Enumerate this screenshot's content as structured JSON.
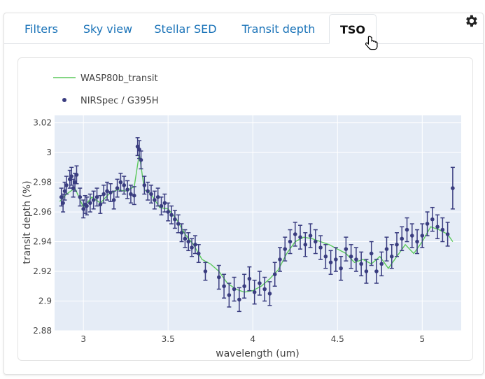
{
  "tabs": [
    {
      "label": "Filters",
      "active": false
    },
    {
      "label": "Sky view",
      "active": false
    },
    {
      "label": "Stellar SED",
      "active": false
    },
    {
      "label": "Transit depth",
      "active": false
    },
    {
      "label": "TSO",
      "active": true
    }
  ],
  "settings_icon": "gear-icon",
  "colors": {
    "model": "#5bc95b",
    "data": "#3a3d80",
    "plot_bg": "#e5ecf6",
    "tab_link": "#1a73b8"
  },
  "chart_data": {
    "type": "line",
    "xlabel": "wavelength (um)",
    "ylabel": "transit depth (%)",
    "xlim": [
      2.83,
      5.23
    ],
    "ylim": [
      2.88,
      3.025
    ],
    "xticks": [
      3,
      3.5,
      4,
      4.5,
      5
    ],
    "xtick_labels": [
      "3",
      "3.5",
      "4",
      "4.5",
      "5"
    ],
    "yticks": [
      2.88,
      2.9,
      2.92,
      2.94,
      2.96,
      2.98,
      3,
      3.02
    ],
    "ytick_labels": [
      "2.88",
      "2.9",
      "2.92",
      "2.94",
      "2.96",
      "2.98",
      "3",
      "3.02"
    ],
    "grid": true,
    "legend_position": "top-left",
    "series": [
      {
        "name": "WASP80b_transit",
        "kind": "line",
        "x": [
          2.86,
          2.9,
          2.95,
          3.0,
          3.05,
          3.1,
          3.15,
          3.2,
          3.25,
          3.3,
          3.33,
          3.36,
          3.4,
          3.45,
          3.5,
          3.55,
          3.6,
          3.65,
          3.7,
          3.75,
          3.8,
          3.85,
          3.9,
          3.95,
          4.0,
          4.05,
          4.1,
          4.15,
          4.2,
          4.25,
          4.3,
          4.35,
          4.4,
          4.45,
          4.5,
          4.55,
          4.6,
          4.65,
          4.7,
          4.75,
          4.8,
          4.85,
          4.9,
          4.95,
          5.0,
          5.05,
          5.1,
          5.15,
          5.18
        ],
        "y": [
          2.967,
          2.972,
          2.976,
          2.963,
          2.97,
          2.966,
          2.972,
          2.975,
          2.974,
          2.977,
          2.999,
          2.975,
          2.972,
          2.963,
          2.962,
          2.955,
          2.945,
          2.938,
          2.928,
          2.925,
          2.92,
          2.912,
          2.908,
          2.906,
          2.907,
          2.91,
          2.915,
          2.921,
          2.932,
          2.94,
          2.943,
          2.942,
          2.94,
          2.938,
          2.935,
          2.932,
          2.926,
          2.928,
          2.925,
          2.93,
          2.922,
          2.93,
          2.938,
          2.932,
          2.94,
          2.95,
          2.948,
          2.945,
          2.94
        ]
      },
      {
        "name": "NIRSpec / G395H",
        "kind": "errorbar",
        "x": [
          2.87,
          2.88,
          2.89,
          2.9,
          2.92,
          2.93,
          2.94,
          2.95,
          2.96,
          2.98,
          3.0,
          3.01,
          3.02,
          3.04,
          3.06,
          3.08,
          3.1,
          3.12,
          3.14,
          3.16,
          3.18,
          3.2,
          3.22,
          3.24,
          3.26,
          3.28,
          3.3,
          3.32,
          3.33,
          3.34,
          3.36,
          3.38,
          3.4,
          3.42,
          3.44,
          3.46,
          3.48,
          3.5,
          3.52,
          3.54,
          3.56,
          3.58,
          3.6,
          3.62,
          3.64,
          3.66,
          3.68,
          3.72,
          3.8,
          3.83,
          3.86,
          3.89,
          3.92,
          3.95,
          3.98,
          4.01,
          4.04,
          4.07,
          4.1,
          4.13,
          4.16,
          4.19,
          4.22,
          4.25,
          4.28,
          4.31,
          4.34,
          4.37,
          4.4,
          4.43,
          4.46,
          4.49,
          4.52,
          4.55,
          4.58,
          4.61,
          4.64,
          4.67,
          4.7,
          4.73,
          4.76,
          4.79,
          4.82,
          4.85,
          4.88,
          4.91,
          4.94,
          4.97,
          5.0,
          5.03,
          5.06,
          5.09,
          5.12,
          5.15,
          5.18
        ],
        "y": [
          2.97,
          2.966,
          2.974,
          2.978,
          2.982,
          2.984,
          2.976,
          2.98,
          2.985,
          2.97,
          2.962,
          2.965,
          2.964,
          2.966,
          2.968,
          2.97,
          2.965,
          2.972,
          2.974,
          2.973,
          2.968,
          2.976,
          2.98,
          2.978,
          2.975,
          2.972,
          2.971,
          3.004,
          3.002,
          2.995,
          2.978,
          2.974,
          2.972,
          2.968,
          2.97,
          2.964,
          2.966,
          2.96,
          2.958,
          2.955,
          2.952,
          2.946,
          2.942,
          2.94,
          2.936,
          2.938,
          2.932,
          2.92,
          2.916,
          2.91,
          2.904,
          2.908,
          2.901,
          2.91,
          2.915,
          2.906,
          2.912,
          2.908,
          2.905,
          2.918,
          2.928,
          2.935,
          2.94,
          2.945,
          2.943,
          2.938,
          2.944,
          2.94,
          2.936,
          2.93,
          2.926,
          2.928,
          2.922,
          2.935,
          2.93,
          2.928,
          2.925,
          2.92,
          2.932,
          2.92,
          2.925,
          2.935,
          2.93,
          2.938,
          2.942,
          2.948,
          2.944,
          2.94,
          2.944,
          2.952,
          2.955,
          2.95,
          2.948,
          2.945,
          2.976
        ],
        "err": [
          0.006,
          0.006,
          0.006,
          0.006,
          0.006,
          0.006,
          0.006,
          0.006,
          0.006,
          0.006,
          0.006,
          0.006,
          0.006,
          0.006,
          0.006,
          0.006,
          0.006,
          0.006,
          0.006,
          0.006,
          0.006,
          0.006,
          0.006,
          0.006,
          0.006,
          0.006,
          0.006,
          0.006,
          0.006,
          0.006,
          0.006,
          0.006,
          0.006,
          0.006,
          0.006,
          0.006,
          0.006,
          0.006,
          0.006,
          0.006,
          0.006,
          0.006,
          0.006,
          0.006,
          0.006,
          0.006,
          0.006,
          0.006,
          0.008,
          0.008,
          0.008,
          0.008,
          0.008,
          0.008,
          0.008,
          0.008,
          0.008,
          0.008,
          0.008,
          0.008,
          0.008,
          0.008,
          0.008,
          0.008,
          0.008,
          0.008,
          0.008,
          0.008,
          0.008,
          0.008,
          0.008,
          0.008,
          0.008,
          0.008,
          0.008,
          0.008,
          0.008,
          0.008,
          0.008,
          0.008,
          0.008,
          0.008,
          0.008,
          0.008,
          0.008,
          0.008,
          0.008,
          0.008,
          0.008,
          0.008,
          0.008,
          0.008,
          0.008,
          0.008,
          0.014
        ]
      }
    ]
  }
}
